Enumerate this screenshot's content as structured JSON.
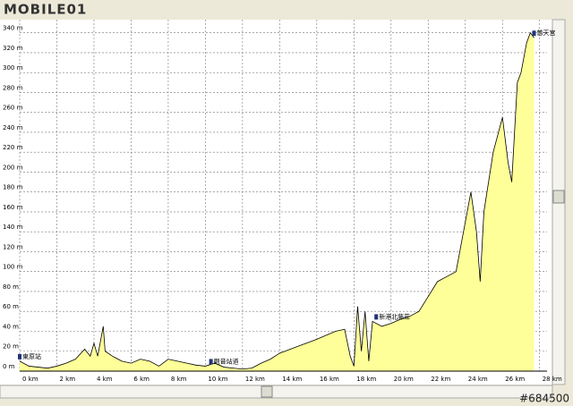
{
  "logo": "MOBILE01",
  "watermark": "#684500",
  "chart_data": {
    "type": "area",
    "x": [
      0,
      0.5,
      1,
      1.5,
      2,
      2.5,
      3,
      3.5,
      3.8,
      4,
      4.2,
      4.5,
      4.6,
      5,
      5.5,
      6,
      6.5,
      7,
      7.5,
      8,
      8.5,
      9,
      9.5,
      10,
      10.5,
      11,
      11.5,
      12,
      12.5,
      13,
      13.5,
      14,
      15,
      16,
      17,
      17.5,
      17.8,
      18,
      18.2,
      18.4,
      18.6,
      18.8,
      19,
      19.5,
      20,
      20.5,
      21,
      21.5,
      22,
      22.5,
      23,
      23.5,
      24,
      24.3,
      24.6,
      24.8,
      25,
      25.5,
      26,
      26.3,
      26.5,
      26.8,
      27,
      27.3,
      27.5,
      27.7
    ],
    "series": [
      {
        "name": "elevation",
        "color": "#ffff99",
        "values": [
          10,
          5,
          4,
          3,
          5,
          8,
          12,
          22,
          15,
          28,
          15,
          45,
          20,
          15,
          10,
          8,
          12,
          10,
          5,
          12,
          10,
          8,
          6,
          5,
          8,
          4,
          3,
          2,
          3,
          8,
          12,
          18,
          25,
          32,
          40,
          42,
          15,
          5,
          65,
          20,
          60,
          10,
          50,
          45,
          48,
          52,
          55,
          60,
          75,
          90,
          95,
          100,
          150,
          180,
          140,
          90,
          160,
          220,
          255,
          210,
          190,
          290,
          300,
          330,
          340,
          335
        ]
      }
    ],
    "xlim": [
      0,
      28.4
    ],
    "ylim": [
      0,
      346
    ],
    "xticks": [
      {
        "value": 0,
        "label": "0 km"
      },
      {
        "value": 2,
        "label": "2 km"
      },
      {
        "value": 4,
        "label": "4 km"
      },
      {
        "value": 6,
        "label": "6 km"
      },
      {
        "value": 8,
        "label": "8 km"
      },
      {
        "value": 10,
        "label": "10 km"
      },
      {
        "value": 12,
        "label": "12 km"
      },
      {
        "value": 14,
        "label": "14 km"
      },
      {
        "value": 16,
        "label": "16 km"
      },
      {
        "value": 18,
        "label": "18 km"
      },
      {
        "value": 20,
        "label": "20 km"
      },
      {
        "value": 22,
        "label": "22 km"
      },
      {
        "value": 24,
        "label": "24 km"
      },
      {
        "value": 26,
        "label": "26 km"
      },
      {
        "value": 28,
        "label": "28 km"
      }
    ],
    "yticks": [
      {
        "value": 0,
        "label": "0 m"
      },
      {
        "value": 20,
        "label": "20 m"
      },
      {
        "value": 40,
        "label": "40 m"
      },
      {
        "value": 60,
        "label": "60 m"
      },
      {
        "value": 80,
        "label": "80 m"
      },
      {
        "value": 100,
        "label": "100 m"
      },
      {
        "value": 120,
        "label": "120 m"
      },
      {
        "value": 140,
        "label": "140 m"
      },
      {
        "value": 160,
        "label": "160 m"
      },
      {
        "value": 180,
        "label": "180 m"
      },
      {
        "value": 200,
        "label": "200 m"
      },
      {
        "value": 220,
        "label": "220 m"
      },
      {
        "value": 240,
        "label": "240 m"
      },
      {
        "value": 260,
        "label": "260 m"
      },
      {
        "value": 280,
        "label": "280 m"
      },
      {
        "value": 300,
        "label": "300 m"
      },
      {
        "value": 320,
        "label": "320 m"
      },
      {
        "value": 340,
        "label": "340 m"
      }
    ],
    "grid": true,
    "annotations": [
      {
        "x": 0,
        "y": 10,
        "label": "東原站"
      },
      {
        "x": 10.3,
        "y": 5,
        "label": "觀音站道"
      },
      {
        "x": 19.2,
        "y": 50,
        "label": "新港北藤莊"
      },
      {
        "x": 27.7,
        "y": 335,
        "label": "慈天宮"
      }
    ]
  }
}
